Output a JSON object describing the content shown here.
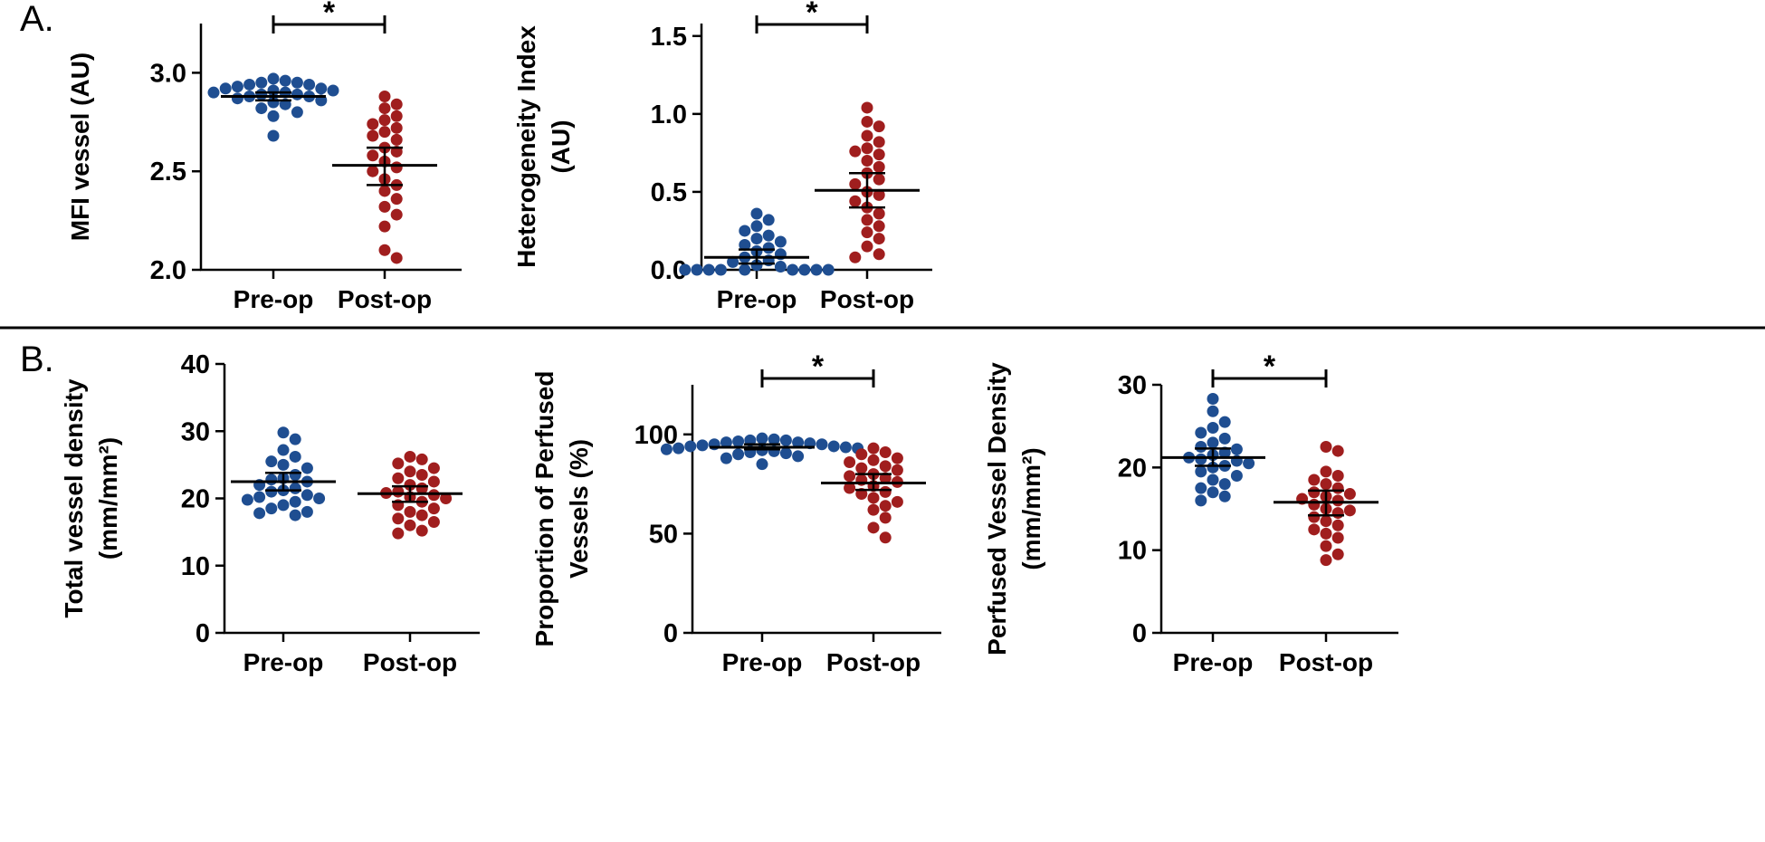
{
  "figure": {
    "panel_labels": [
      "A.",
      "B."
    ]
  },
  "colors": {
    "preop": "#1f4e91",
    "postop": "#a01e1e",
    "axis": "#000000"
  },
  "chart_data": [
    {
      "type": "scatter",
      "panel": "A.",
      "ylabel_lines": [
        "MFI vessel (AU)"
      ],
      "categories": [
        "Pre-op",
        "Post-op"
      ],
      "ylim": [
        2.0,
        3.25
      ],
      "yticks": [
        2.0,
        2.5,
        3.0
      ],
      "tick_format": "0.0",
      "significance": "*",
      "series": [
        {
          "category": "Pre-op",
          "values": [
            2.97,
            2.96,
            2.95,
            2.95,
            2.94,
            2.94,
            2.93,
            2.92,
            2.92,
            2.91,
            2.91,
            2.9,
            2.9,
            2.89,
            2.89,
            2.88,
            2.88,
            2.87,
            2.86,
            2.85,
            2.84,
            2.82,
            2.8,
            2.78,
            2.68
          ],
          "mean": 2.88,
          "error": [
            2.86,
            2.9
          ]
        },
        {
          "category": "Post-op",
          "values": [
            2.88,
            2.84,
            2.82,
            2.78,
            2.76,
            2.74,
            2.72,
            2.7,
            2.68,
            2.66,
            2.62,
            2.6,
            2.58,
            2.55,
            2.52,
            2.5,
            2.46,
            2.43,
            2.4,
            2.36,
            2.32,
            2.28,
            2.22,
            2.1,
            2.06
          ],
          "mean": 2.53,
          "error": [
            2.43,
            2.62
          ]
        }
      ]
    },
    {
      "type": "scatter",
      "panel": "A.",
      "ylabel_lines": [
        "Heterogeneity Index",
        "(AU)"
      ],
      "categories": [
        "Pre-op",
        "Post-op"
      ],
      "ylim": [
        0.0,
        1.58
      ],
      "yticks": [
        0.0,
        0.5,
        1.0,
        1.5
      ],
      "tick_format": "0.0",
      "significance": "*",
      "series": [
        {
          "category": "Pre-op",
          "values": [
            0.36,
            0.32,
            0.28,
            0.25,
            0.22,
            0.2,
            0.18,
            0.16,
            0.14,
            0.12,
            0.1,
            0.08,
            0.06,
            0.05,
            0.03,
            0.02,
            0,
            0,
            0,
            0,
            0,
            0,
            0,
            0,
            0
          ],
          "mean": 0.08,
          "error": [
            0.04,
            0.13
          ]
        },
        {
          "category": "Post-op",
          "values": [
            1.04,
            0.95,
            0.92,
            0.86,
            0.82,
            0.78,
            0.76,
            0.74,
            0.7,
            0.66,
            0.62,
            0.58,
            0.55,
            0.5,
            0.48,
            0.44,
            0.4,
            0.36,
            0.32,
            0.28,
            0.24,
            0.2,
            0.15,
            0.1,
            0.08
          ],
          "mean": 0.51,
          "error": [
            0.4,
            0.62
          ]
        }
      ]
    },
    {
      "type": "scatter",
      "panel": "B.",
      "ylabel_lines": [
        "Total vessel density",
        "(mm/mm²)"
      ],
      "categories": [
        "Pre-op",
        "Post-op"
      ],
      "ylim": [
        0,
        40
      ],
      "yticks": [
        0,
        10,
        20,
        30,
        40
      ],
      "tick_format": "0",
      "significance": "",
      "series": [
        {
          "category": "Pre-op",
          "values": [
            29.8,
            28.8,
            27.2,
            26.2,
            25.5,
            25.0,
            24.5,
            23.5,
            23.0,
            22.8,
            22.5,
            22.0,
            21.5,
            21.2,
            21.0,
            20.5,
            20.2,
            20.0,
            19.8,
            19.5,
            19.0,
            18.5,
            18.0,
            17.8,
            17.5
          ],
          "mean": 22.5,
          "error": [
            21.2,
            23.8
          ]
        },
        {
          "category": "Post-op",
          "values": [
            26.2,
            25.8,
            25.2,
            24.5,
            24.0,
            23.5,
            23.0,
            22.5,
            22.0,
            21.5,
            21.0,
            20.8,
            20.5,
            20.2,
            20.0,
            19.5,
            19.0,
            18.5,
            18.0,
            17.5,
            17.0,
            16.5,
            16.0,
            15.2,
            14.8
          ],
          "mean": 20.7,
          "error": [
            19.5,
            21.8
          ]
        }
      ]
    },
    {
      "type": "scatter",
      "panel": "B.",
      "ylabel_lines": [
        "Proportion of Perfused",
        "Vessels (%)"
      ],
      "categories": [
        "Pre-op",
        "Post-op"
      ],
      "ylim": [
        0,
        125
      ],
      "yticks": [
        0,
        50,
        100
      ],
      "tick_format": "0",
      "significance": "*",
      "series": [
        {
          "category": "Pre-op",
          "values": [
            98,
            97.5,
            97,
            97,
            96.5,
            96,
            96,
            95.5,
            95,
            95,
            94.5,
            94,
            94,
            93.5,
            93,
            93,
            92.5,
            92,
            91.5,
            91,
            90.5,
            90,
            89,
            88,
            85
          ],
          "mean": 93.5,
          "error": [
            92.5,
            95
          ]
        },
        {
          "category": "Post-op",
          "values": [
            93,
            91,
            90,
            88,
            87,
            86,
            84,
            83,
            82,
            80,
            79,
            78,
            77,
            76,
            74,
            73,
            71,
            70,
            68,
            66,
            64,
            62,
            58,
            53,
            48
          ],
          "mean": 75.5,
          "error": [
            72,
            80
          ]
        }
      ]
    },
    {
      "type": "scatter",
      "panel": "B.",
      "ylabel_lines": [
        "Perfused Vessel Density",
        "(mm/mm²)"
      ],
      "categories": [
        "Pre-op",
        "Post-op"
      ],
      "ylim": [
        0,
        30
      ],
      "yticks": [
        0,
        10,
        20,
        30
      ],
      "tick_format": "0",
      "significance": "*",
      "series": [
        {
          "category": "Pre-op",
          "values": [
            28.3,
            26.8,
            25.5,
            24.8,
            24.2,
            23.5,
            23.0,
            22.5,
            22.2,
            21.8,
            21.5,
            21.2,
            21.0,
            20.8,
            20.5,
            20.2,
            20.0,
            19.5,
            19.0,
            18.5,
            18.0,
            17.5,
            17.0,
            16.5,
            16.0
          ],
          "mean": 21.2,
          "error": [
            20.2,
            22.3
          ]
        },
        {
          "category": "Post-op",
          "values": [
            22.5,
            22.0,
            19.5,
            19.0,
            18.5,
            18.0,
            17.5,
            17.0,
            16.8,
            16.5,
            16.2,
            16.0,
            15.5,
            15.0,
            14.8,
            14.5,
            14.0,
            13.5,
            13.0,
            12.5,
            12.0,
            11.5,
            10.5,
            9.5,
            8.8
          ],
          "mean": 15.8,
          "error": [
            14.2,
            17.2
          ]
        }
      ]
    }
  ]
}
